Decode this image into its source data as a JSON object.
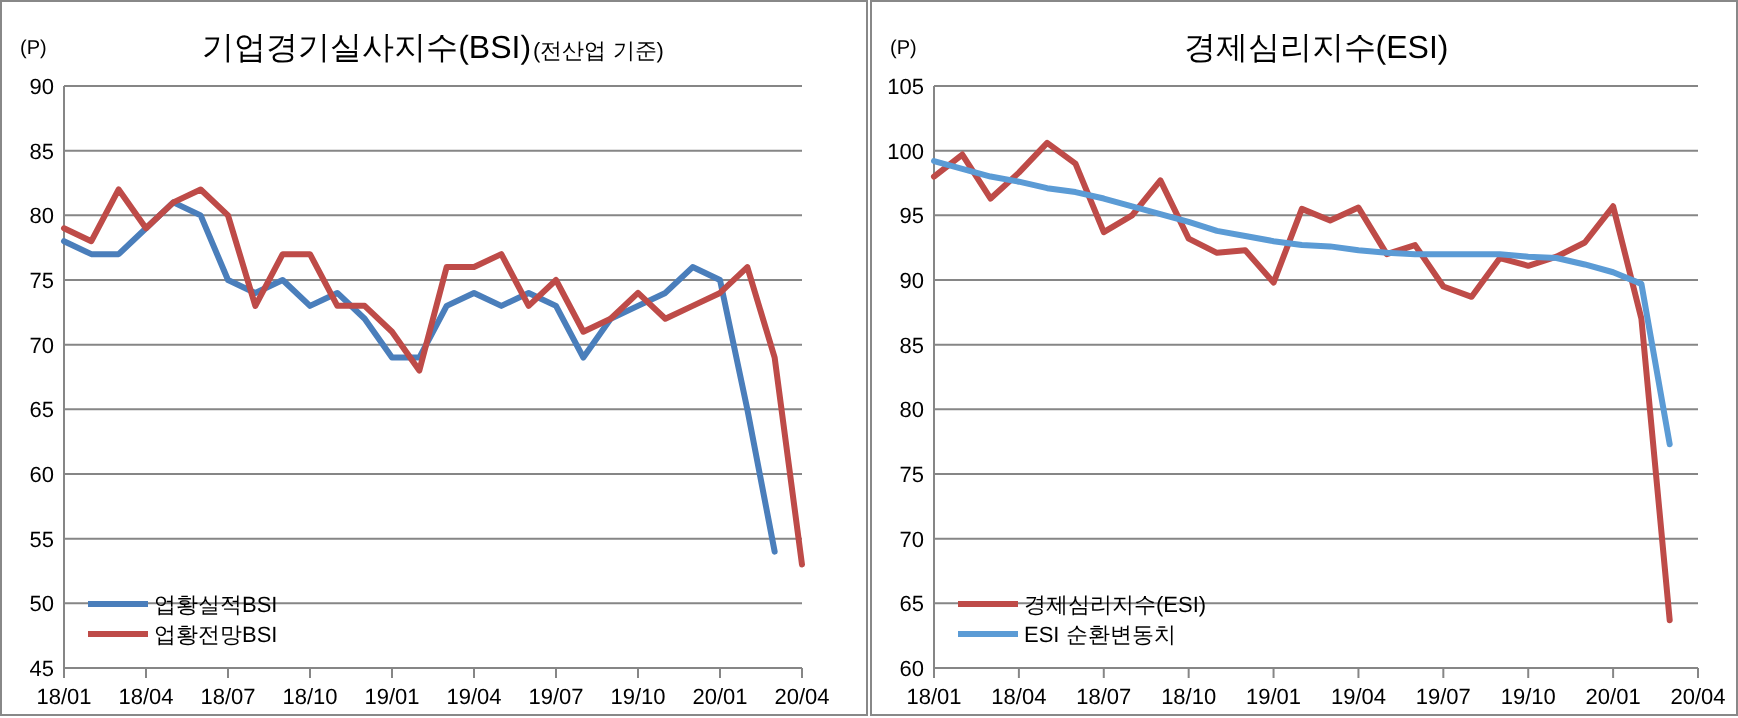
{
  "chart_data": [
    {
      "type": "line",
      "title": "기업경기실사지수(BSI)",
      "subtitle": "(전산업 기준)",
      "ylabel": "(P)",
      "categories": [
        "18/01",
        null,
        null,
        "18/04",
        null,
        null,
        "18/07",
        null,
        null,
        "18/10",
        null,
        null,
        "19/01",
        null,
        null,
        "19/04",
        null,
        null,
        "19/07",
        null,
        null,
        "19/10",
        null,
        null,
        "20/01",
        null,
        null,
        "20/04"
      ],
      "ylim": [
        45,
        90
      ],
      "yticks": [
        45,
        50,
        55,
        60,
        65,
        70,
        75,
        80,
        85,
        90
      ],
      "grid": "y",
      "legend": "bottom left",
      "series": [
        {
          "name": "업황실적BSI",
          "color": "#4a7ebb",
          "values": [
            78,
            77,
            77,
            79,
            81,
            80,
            75,
            74,
            75,
            73,
            74,
            72,
            69,
            69,
            73,
            74,
            73,
            74,
            73,
            69,
            72,
            73,
            74,
            76,
            75,
            65,
            54,
            null
          ]
        },
        {
          "name": "업황전망BSI",
          "color": "#be4b48",
          "values": [
            79,
            78,
            82,
            79,
            81,
            82,
            80,
            73,
            77,
            77,
            73,
            73,
            71,
            68,
            76,
            76,
            77,
            73,
            75,
            71,
            72,
            74,
            72,
            73,
            74,
            76,
            69,
            53
          ]
        }
      ]
    },
    {
      "type": "line",
      "title": "경제심리지수(ESI)",
      "ylabel": "(P)",
      "categories": [
        "18/01",
        null,
        null,
        "18/04",
        null,
        null,
        "18/07",
        null,
        null,
        "18/10",
        null,
        null,
        "19/01",
        null,
        null,
        "19/04",
        null,
        null,
        "19/07",
        null,
        null,
        "19/10",
        null,
        null,
        "20/01",
        null,
        null,
        "20/04"
      ],
      "ylim": [
        60,
        105
      ],
      "yticks": [
        60,
        65,
        70,
        75,
        80,
        85,
        90,
        95,
        100,
        105
      ],
      "grid": "y",
      "legend": "bottom left",
      "series": [
        {
          "name": "경제심리지수(ESI)",
          "color": "#be4b48",
          "values": [
            98,
            99.7,
            96.3,
            98.3,
            100.6,
            99,
            93.7,
            95,
            97.7,
            93.2,
            92.1,
            92.3,
            89.8,
            95.5,
            94.6,
            95.6,
            92,
            92.7,
            89.5,
            88.7,
            91.7,
            91.1,
            91.8,
            92.9,
            95.7,
            87,
            63.7,
            null
          ]
        },
        {
          "name": "ESI 순환변동치",
          "color": "#5b9bd5",
          "values": [
            99.2,
            98.6,
            98,
            97.6,
            97.1,
            96.8,
            96.3,
            95.7,
            95.1,
            94.5,
            93.8,
            93.4,
            93,
            92.7,
            92.6,
            92.3,
            92.1,
            92,
            92,
            92,
            92,
            91.8,
            91.7,
            91.2,
            90.6,
            89.7,
            77.3,
            null
          ]
        }
      ]
    }
  ]
}
